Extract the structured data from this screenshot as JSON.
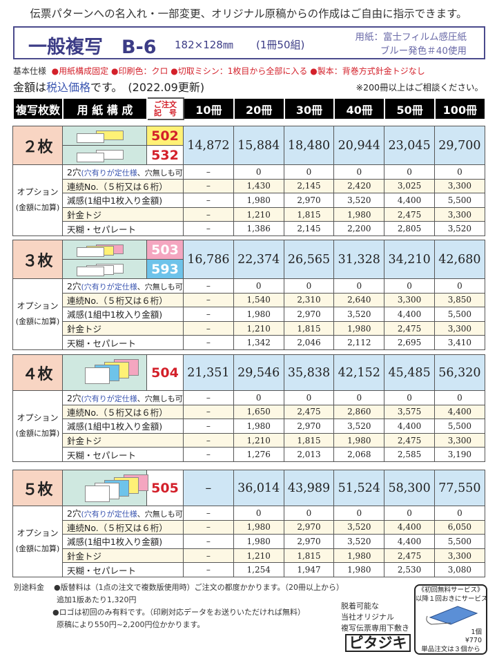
{
  "header": {
    "top_text": "伝票パターンへの名入れ・一部変更、オリジナル原稿からの作成はご自由に指示できます。",
    "title": "一般複写　B-6",
    "size": "182×128㎜",
    "sets": "(1冊50組)",
    "paper_line1": "用紙：富士フィルム感圧紙",
    "paper_line2": "ブルー発色＃40使用",
    "spec_label": "基本仕様",
    "specs": [
      "●用紙構成固定",
      "●印刷色：クロ",
      "●切取ミシン：1枚目から全部に入る",
      "●製本：背巻方式針金トジなし"
    ],
    "price_pre": "金額は",
    "price_tax": "税込価格",
    "price_post": "です。　(2022.09更新)",
    "note": "※200冊以上はご相談ください。"
  },
  "table": {
    "headers": [
      "複写枚数",
      "用 紙 構 成",
      "ご注文\n記　号",
      "10冊",
      "20冊",
      "30冊",
      "40冊",
      "50冊",
      "100冊"
    ],
    "option_title": "オプション",
    "option_sub": "(金額に加算)",
    "option_labels": [
      [
        "2穴",
        "(穴有りが定仕様",
        "、穴無しも可)"
      ],
      [
        "連続No.（５桁又は６桁）"
      ],
      [
        "減感(1組中1枚入り金額)"
      ],
      [
        "針金トジ"
      ],
      [
        "天糊・セパレート"
      ]
    ],
    "blocks": [
      {
        "label": "２枚",
        "codes": [
          "502",
          "532"
        ],
        "code_colors": [
          "#fff176",
          "#ffffff"
        ],
        "prices": [
          "14,872",
          "15,884",
          "18,480",
          "20,944",
          "23,045",
          "29,700"
        ],
        "options": [
          [
            "–",
            "0",
            "0",
            "0",
            "0",
            "0"
          ],
          [
            "–",
            "1,430",
            "2,145",
            "2,420",
            "3,025",
            "3,300"
          ],
          [
            "–",
            "1,980",
            "2,970",
            "3,520",
            "4,400",
            "5,500"
          ],
          [
            "–",
            "1,210",
            "1,815",
            "1,980",
            "2,475",
            "3,300"
          ],
          [
            "–",
            "1,386",
            "2,145",
            "2,200",
            "2,805",
            "3,520"
          ]
        ]
      },
      {
        "label": "３枚",
        "codes": [
          "503",
          "593"
        ],
        "code_colors": [
          "#f4a6c0",
          "#6ec3ea"
        ],
        "prices": [
          "16,786",
          "22,374",
          "26,565",
          "31,328",
          "34,210",
          "42,680"
        ],
        "options": [
          [
            "–",
            "0",
            "0",
            "0",
            "0",
            "0"
          ],
          [
            "–",
            "1,540",
            "2,310",
            "2,640",
            "3,300",
            "3,850"
          ],
          [
            "–",
            "1,980",
            "2,970",
            "3,520",
            "4,400",
            "5,500"
          ],
          [
            "–",
            "1,210",
            "1,815",
            "1,980",
            "2,475",
            "3,300"
          ],
          [
            "–",
            "1,342",
            "2,046",
            "2,112",
            "2,695",
            "3,410"
          ]
        ]
      },
      {
        "label": "４枚",
        "codes": [
          "504"
        ],
        "code_colors": [
          "#ffffff"
        ],
        "prices": [
          "21,351",
          "29,546",
          "35,838",
          "42,152",
          "45,485",
          "56,320"
        ],
        "options": [
          [
            "–",
            "0",
            "0",
            "0",
            "0",
            "0"
          ],
          [
            "–",
            "1,650",
            "2,475",
            "2,860",
            "3,575",
            "4,400"
          ],
          [
            "–",
            "1,980",
            "2,970",
            "3,520",
            "4,400",
            "5,500"
          ],
          [
            "–",
            "1,210",
            "1,815",
            "1,980",
            "2,475",
            "3,300"
          ],
          [
            "–",
            "1,276",
            "2,013",
            "2,068",
            "2,585",
            "3,190"
          ]
        ]
      },
      {
        "label": "５枚",
        "codes": [
          "505"
        ],
        "code_colors": [
          "#ffffff"
        ],
        "prices": [
          "–",
          "36,014",
          "43,989",
          "51,524",
          "58,300",
          "77,550"
        ],
        "options": [
          [
            "–",
            "0",
            "0",
            "0",
            "0",
            "0"
          ],
          [
            "–",
            "1,980",
            "2,970",
            "3,520",
            "4,400",
            "6,050"
          ],
          [
            "–",
            "1,980",
            "2,970",
            "3,520",
            "4,400",
            "5,500"
          ],
          [
            "–",
            "1,210",
            "1,815",
            "1,980",
            "2,475",
            "3,300"
          ],
          [
            "–",
            "1,254",
            "1,947",
            "1,980",
            "2,530",
            "3,080"
          ]
        ]
      }
    ]
  },
  "footer": {
    "label": "別途料金",
    "lines": [
      "●版替料は（1点の注文で複数版使用時）ご注文の都度かかります。（20冊以上から）",
      "追加1版あたり1,320円",
      "●ロゴは初回のみ有料です。（印刷対応データをお送りいただければ無料）",
      "原稿により550円~2,200円位かかります。"
    ],
    "pitajiki_desc": [
      "脱着可能な",
      "当社オリジナル",
      "複写伝票専用下敷き"
    ],
    "pitajiki": "ピタジキ",
    "service_title": "《初回無料サービス》",
    "service_sub": "以降１回おきにサービス",
    "unit": "1個",
    "unit_price": "¥770",
    "min_order": "単品注文は３個から"
  }
}
